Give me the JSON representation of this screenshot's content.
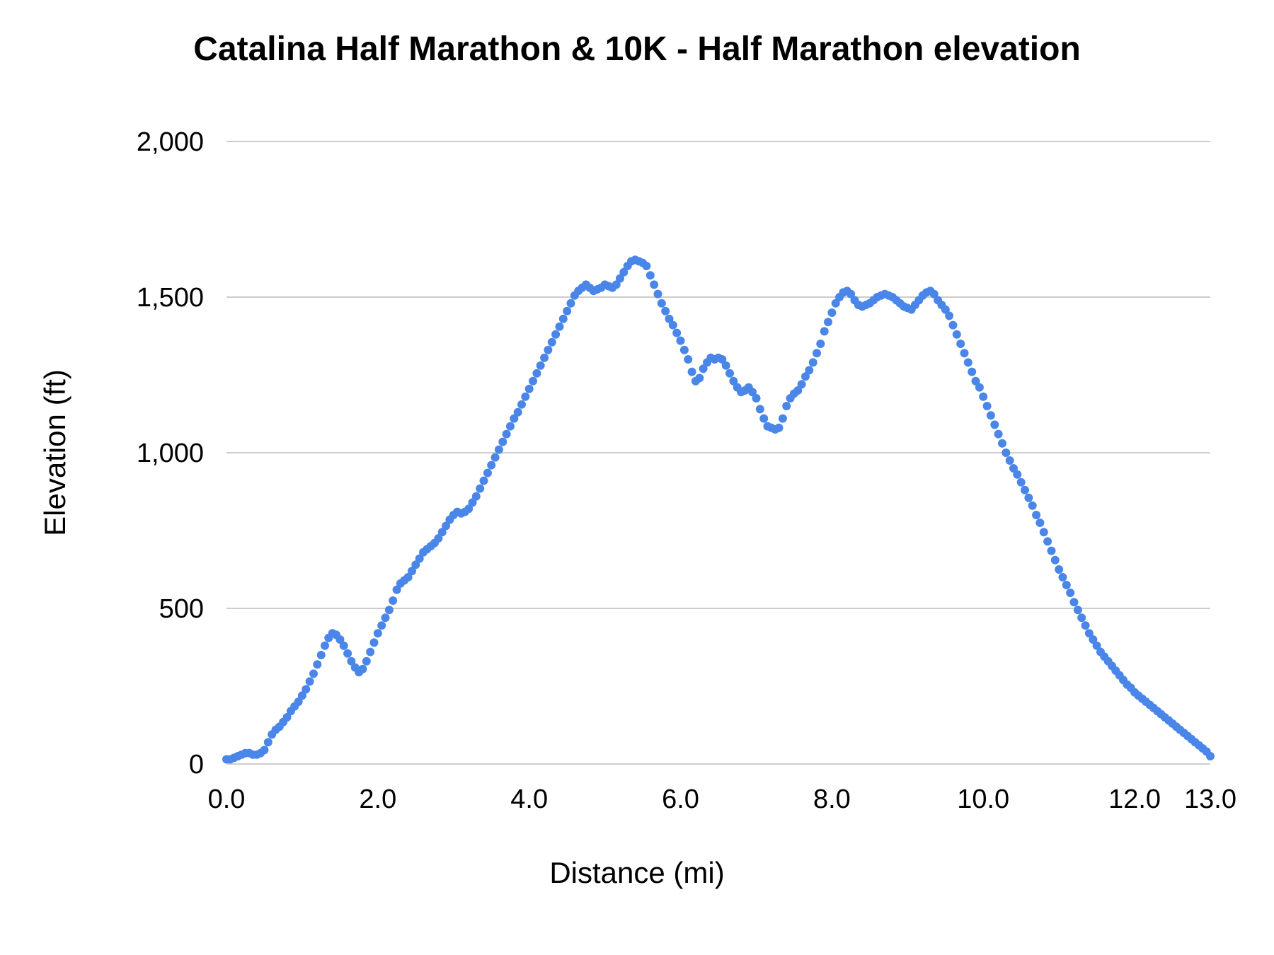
{
  "chart_data": {
    "type": "scatter",
    "title": "Catalina Half Marathon & 10K - Half Marathon elevation",
    "xlabel": "Distance (mi)",
    "ylabel": "Elevation (ft)",
    "xlim": [
      0,
      13
    ],
    "ylim": [
      0,
      2000
    ],
    "x_ticks": [
      0,
      2,
      4,
      6,
      8,
      10,
      12,
      13
    ],
    "x_tick_labels": [
      "0.0",
      "2.0",
      "4.0",
      "6.0",
      "8.0",
      "10.0",
      "12.0",
      "13.0"
    ],
    "y_ticks": [
      0,
      500,
      1000,
      1500,
      2000
    ],
    "y_tick_labels": [
      "0",
      "500",
      "1,000",
      "1,500",
      "2,000"
    ],
    "grid": true,
    "grid_color": "#cccccc",
    "text_color": "#000000",
    "point_color": "#4a86e8",
    "points": [
      [
        0.0,
        15
      ],
      [
        0.05,
        15
      ],
      [
        0.1,
        20
      ],
      [
        0.15,
        25
      ],
      [
        0.2,
        30
      ],
      [
        0.25,
        35
      ],
      [
        0.3,
        35
      ],
      [
        0.35,
        30
      ],
      [
        0.4,
        30
      ],
      [
        0.45,
        35
      ],
      [
        0.5,
        45
      ],
      [
        0.55,
        70
      ],
      [
        0.6,
        95
      ],
      [
        0.65,
        110
      ],
      [
        0.7,
        120
      ],
      [
        0.75,
        135
      ],
      [
        0.8,
        150
      ],
      [
        0.85,
        170
      ],
      [
        0.9,
        185
      ],
      [
        0.95,
        200
      ],
      [
        1.0,
        220
      ],
      [
        1.05,
        240
      ],
      [
        1.1,
        265
      ],
      [
        1.15,
        290
      ],
      [
        1.2,
        320
      ],
      [
        1.25,
        350
      ],
      [
        1.3,
        380
      ],
      [
        1.35,
        405
      ],
      [
        1.4,
        420
      ],
      [
        1.45,
        415
      ],
      [
        1.5,
        400
      ],
      [
        1.55,
        380
      ],
      [
        1.6,
        355
      ],
      [
        1.65,
        330
      ],
      [
        1.7,
        310
      ],
      [
        1.75,
        295
      ],
      [
        1.8,
        305
      ],
      [
        1.85,
        330
      ],
      [
        1.9,
        360
      ],
      [
        1.95,
        390
      ],
      [
        2.0,
        420
      ],
      [
        2.05,
        445
      ],
      [
        2.1,
        470
      ],
      [
        2.15,
        495
      ],
      [
        2.2,
        525
      ],
      [
        2.25,
        560
      ],
      [
        2.3,
        580
      ],
      [
        2.35,
        590
      ],
      [
        2.4,
        600
      ],
      [
        2.45,
        620
      ],
      [
        2.5,
        640
      ],
      [
        2.55,
        660
      ],
      [
        2.6,
        680
      ],
      [
        2.65,
        690
      ],
      [
        2.7,
        700
      ],
      [
        2.75,
        710
      ],
      [
        2.8,
        725
      ],
      [
        2.85,
        745
      ],
      [
        2.9,
        765
      ],
      [
        2.95,
        785
      ],
      [
        3.0,
        800
      ],
      [
        3.05,
        810
      ],
      [
        3.1,
        805
      ],
      [
        3.15,
        810
      ],
      [
        3.2,
        820
      ],
      [
        3.25,
        840
      ],
      [
        3.3,
        860
      ],
      [
        3.35,
        885
      ],
      [
        3.4,
        910
      ],
      [
        3.45,
        935
      ],
      [
        3.5,
        960
      ],
      [
        3.55,
        985
      ],
      [
        3.6,
        1010
      ],
      [
        3.65,
        1035
      ],
      [
        3.7,
        1060
      ],
      [
        3.75,
        1085
      ],
      [
        3.8,
        1110
      ],
      [
        3.85,
        1130
      ],
      [
        3.9,
        1155
      ],
      [
        3.95,
        1180
      ],
      [
        4.0,
        1205
      ],
      [
        4.05,
        1230
      ],
      [
        4.1,
        1255
      ],
      [
        4.15,
        1280
      ],
      [
        4.2,
        1305
      ],
      [
        4.25,
        1330
      ],
      [
        4.3,
        1355
      ],
      [
        4.35,
        1380
      ],
      [
        4.4,
        1405
      ],
      [
        4.45,
        1430
      ],
      [
        4.5,
        1455
      ],
      [
        4.55,
        1480
      ],
      [
        4.6,
        1505
      ],
      [
        4.65,
        1520
      ],
      [
        4.7,
        1530
      ],
      [
        4.75,
        1540
      ],
      [
        4.8,
        1530
      ],
      [
        4.85,
        1520
      ],
      [
        4.9,
        1525
      ],
      [
        4.95,
        1530
      ],
      [
        5.0,
        1540
      ],
      [
        5.05,
        1535
      ],
      [
        5.1,
        1530
      ],
      [
        5.15,
        1540
      ],
      [
        5.2,
        1560
      ],
      [
        5.25,
        1580
      ],
      [
        5.3,
        1600
      ],
      [
        5.35,
        1615
      ],
      [
        5.4,
        1620
      ],
      [
        5.45,
        1615
      ],
      [
        5.5,
        1610
      ],
      [
        5.55,
        1600
      ],
      [
        5.6,
        1570
      ],
      [
        5.65,
        1540
      ],
      [
        5.7,
        1510
      ],
      [
        5.75,
        1480
      ],
      [
        5.8,
        1455
      ],
      [
        5.85,
        1430
      ],
      [
        5.9,
        1410
      ],
      [
        5.95,
        1385
      ],
      [
        6.0,
        1360
      ],
      [
        6.05,
        1330
      ],
      [
        6.1,
        1300
      ],
      [
        6.15,
        1260
      ],
      [
        6.2,
        1230
      ],
      [
        6.25,
        1240
      ],
      [
        6.3,
        1270
      ],
      [
        6.35,
        1290
      ],
      [
        6.4,
        1305
      ],
      [
        6.45,
        1300
      ],
      [
        6.5,
        1305
      ],
      [
        6.55,
        1300
      ],
      [
        6.6,
        1280
      ],
      [
        6.65,
        1255
      ],
      [
        6.7,
        1230
      ],
      [
        6.75,
        1210
      ],
      [
        6.8,
        1195
      ],
      [
        6.85,
        1200
      ],
      [
        6.9,
        1210
      ],
      [
        6.95,
        1195
      ],
      [
        7.0,
        1175
      ],
      [
        7.05,
        1140
      ],
      [
        7.1,
        1110
      ],
      [
        7.15,
        1085
      ],
      [
        7.2,
        1080
      ],
      [
        7.25,
        1075
      ],
      [
        7.3,
        1080
      ],
      [
        7.35,
        1110
      ],
      [
        7.4,
        1150
      ],
      [
        7.45,
        1175
      ],
      [
        7.5,
        1190
      ],
      [
        7.55,
        1200
      ],
      [
        7.6,
        1220
      ],
      [
        7.65,
        1245
      ],
      [
        7.7,
        1265
      ],
      [
        7.75,
        1290
      ],
      [
        7.8,
        1320
      ],
      [
        7.85,
        1350
      ],
      [
        7.9,
        1390
      ],
      [
        7.95,
        1420
      ],
      [
        8.0,
        1450
      ],
      [
        8.05,
        1480
      ],
      [
        8.1,
        1500
      ],
      [
        8.15,
        1515
      ],
      [
        8.2,
        1520
      ],
      [
        8.25,
        1510
      ],
      [
        8.3,
        1490
      ],
      [
        8.35,
        1475
      ],
      [
        8.4,
        1470
      ],
      [
        8.45,
        1475
      ],
      [
        8.5,
        1480
      ],
      [
        8.55,
        1490
      ],
      [
        8.6,
        1500
      ],
      [
        8.65,
        1505
      ],
      [
        8.7,
        1510
      ],
      [
        8.75,
        1505
      ],
      [
        8.8,
        1500
      ],
      [
        8.85,
        1490
      ],
      [
        8.9,
        1480
      ],
      [
        8.95,
        1470
      ],
      [
        9.0,
        1465
      ],
      [
        9.05,
        1460
      ],
      [
        9.1,
        1475
      ],
      [
        9.15,
        1490
      ],
      [
        9.2,
        1505
      ],
      [
        9.25,
        1515
      ],
      [
        9.3,
        1520
      ],
      [
        9.35,
        1510
      ],
      [
        9.4,
        1490
      ],
      [
        9.45,
        1475
      ],
      [
        9.5,
        1460
      ],
      [
        9.55,
        1440
      ],
      [
        9.6,
        1410
      ],
      [
        9.65,
        1380
      ],
      [
        9.7,
        1350
      ],
      [
        9.75,
        1320
      ],
      [
        9.8,
        1290
      ],
      [
        9.85,
        1260
      ],
      [
        9.9,
        1230
      ],
      [
        9.95,
        1210
      ],
      [
        10.0,
        1180
      ],
      [
        10.05,
        1150
      ],
      [
        10.1,
        1120
      ],
      [
        10.15,
        1090
      ],
      [
        10.2,
        1060
      ],
      [
        10.25,
        1030
      ],
      [
        10.3,
        1000
      ],
      [
        10.35,
        975
      ],
      [
        10.4,
        950
      ],
      [
        10.45,
        930
      ],
      [
        10.5,
        905
      ],
      [
        10.55,
        880
      ],
      [
        10.6,
        855
      ],
      [
        10.65,
        830
      ],
      [
        10.7,
        800
      ],
      [
        10.75,
        775
      ],
      [
        10.8,
        745
      ],
      [
        10.85,
        715
      ],
      [
        10.9,
        685
      ],
      [
        10.95,
        655
      ],
      [
        11.0,
        625
      ],
      [
        11.05,
        600
      ],
      [
        11.1,
        575
      ],
      [
        11.15,
        550
      ],
      [
        11.2,
        520
      ],
      [
        11.25,
        495
      ],
      [
        11.3,
        470
      ],
      [
        11.35,
        445
      ],
      [
        11.4,
        420
      ],
      [
        11.45,
        400
      ],
      [
        11.5,
        380
      ],
      [
        11.55,
        360
      ],
      [
        11.6,
        345
      ],
      [
        11.65,
        330
      ],
      [
        11.7,
        315
      ],
      [
        11.75,
        300
      ],
      [
        11.8,
        285
      ],
      [
        11.85,
        270
      ],
      [
        11.9,
        255
      ],
      [
        11.95,
        245
      ],
      [
        12.0,
        230
      ],
      [
        12.05,
        220
      ],
      [
        12.1,
        210
      ],
      [
        12.15,
        200
      ],
      [
        12.2,
        190
      ],
      [
        12.25,
        180
      ],
      [
        12.3,
        170
      ],
      [
        12.35,
        160
      ],
      [
        12.4,
        150
      ],
      [
        12.45,
        140
      ],
      [
        12.5,
        130
      ],
      [
        12.55,
        120
      ],
      [
        12.6,
        110
      ],
      [
        12.65,
        100
      ],
      [
        12.7,
        90
      ],
      [
        12.75,
        80
      ],
      [
        12.8,
        70
      ],
      [
        12.85,
        60
      ],
      [
        12.9,
        50
      ],
      [
        12.95,
        40
      ],
      [
        13.0,
        25
      ]
    ]
  }
}
